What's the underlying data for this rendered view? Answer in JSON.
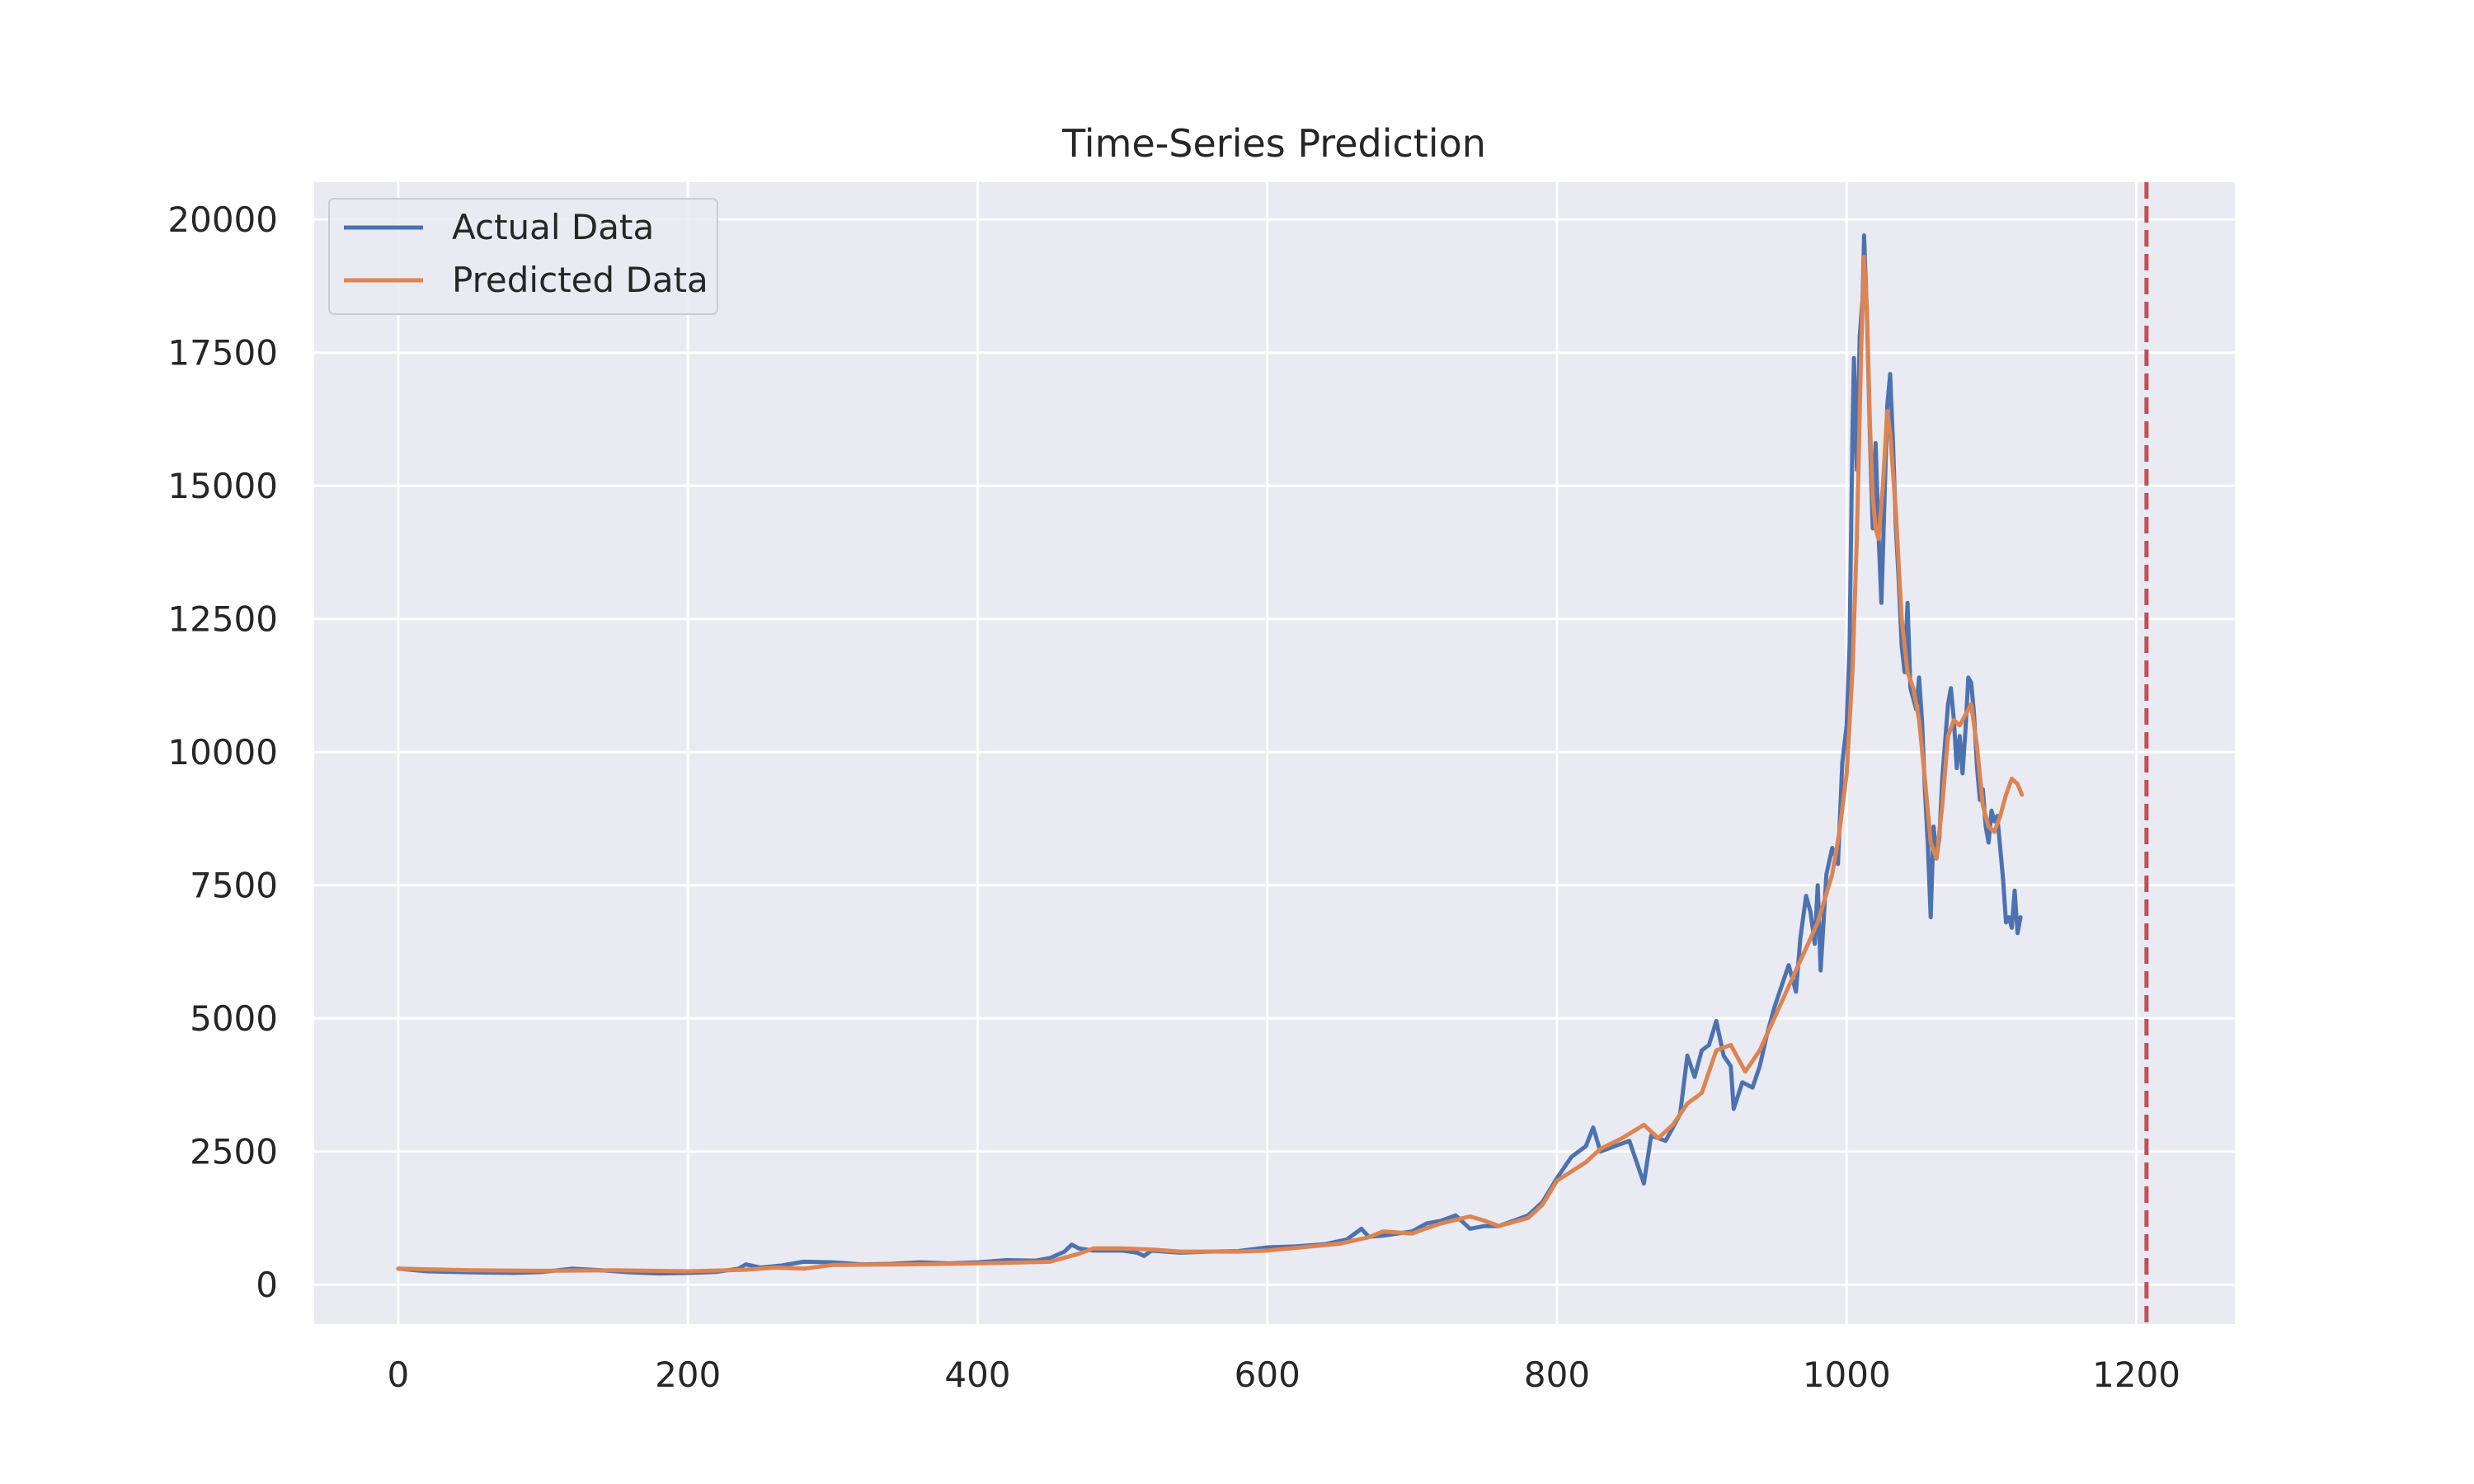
{
  "chart_data": {
    "type": "line",
    "title": "Time-Series Prediction",
    "xlabel": "",
    "ylabel": "",
    "xlim": [
      -58,
      1268
    ],
    "ylim": [
      -740,
      20700
    ],
    "xticks": [
      0,
      200,
      400,
      600,
      800,
      1000,
      1200
    ],
    "xtick_labels": [
      "0",
      "200",
      "400",
      "600",
      "800",
      "1000",
      "1200"
    ],
    "yticks": [
      0,
      2500,
      5000,
      7500,
      10000,
      12500,
      15000,
      17500,
      20000
    ],
    "ytick_labels": [
      "0",
      "2500",
      "5000",
      "7500",
      "10000",
      "12500",
      "15000",
      "17500",
      "20000"
    ],
    "grid": true,
    "legend_position": "top-left",
    "vline": {
      "x": 1207,
      "color": "#c44e52",
      "style": "dashed"
    },
    "colors": {
      "background": "#eaeaf2",
      "grid": "#ffffff",
      "actual": "#4c72b0",
      "predicted": "#dd8452",
      "vline": "#c44e52"
    },
    "series": [
      {
        "name": "Actual Data",
        "color": "#4c72b0",
        "points": [
          [
            0,
            300
          ],
          [
            20,
            250
          ],
          [
            50,
            230
          ],
          [
            80,
            220
          ],
          [
            100,
            240
          ],
          [
            120,
            300
          ],
          [
            140,
            270
          ],
          [
            160,
            230
          ],
          [
            180,
            210
          ],
          [
            200,
            220
          ],
          [
            220,
            240
          ],
          [
            235,
            300
          ],
          [
            240,
            380
          ],
          [
            250,
            320
          ],
          [
            265,
            360
          ],
          [
            280,
            430
          ],
          [
            300,
            420
          ],
          [
            320,
            380
          ],
          [
            340,
            390
          ],
          [
            360,
            420
          ],
          [
            380,
            400
          ],
          [
            400,
            420
          ],
          [
            420,
            460
          ],
          [
            440,
            450
          ],
          [
            450,
            500
          ],
          [
            460,
            620
          ],
          [
            465,
            750
          ],
          [
            470,
            680
          ],
          [
            480,
            640
          ],
          [
            500,
            640
          ],
          [
            510,
            600
          ],
          [
            515,
            540
          ],
          [
            520,
            640
          ],
          [
            540,
            600
          ],
          [
            560,
            620
          ],
          [
            580,
            630
          ],
          [
            600,
            700
          ],
          [
            620,
            720
          ],
          [
            640,
            760
          ],
          [
            655,
            850
          ],
          [
            665,
            1050
          ],
          [
            670,
            900
          ],
          [
            680,
            920
          ],
          [
            700,
            1000
          ],
          [
            710,
            1150
          ],
          [
            720,
            1200
          ],
          [
            730,
            1300
          ],
          [
            740,
            1050
          ],
          [
            750,
            1100
          ],
          [
            760,
            1100
          ],
          [
            770,
            1200
          ],
          [
            780,
            1300
          ],
          [
            790,
            1550
          ],
          [
            800,
            2000
          ],
          [
            810,
            2400
          ],
          [
            820,
            2600
          ],
          [
            825,
            2950
          ],
          [
            830,
            2500
          ],
          [
            840,
            2600
          ],
          [
            850,
            2700
          ],
          [
            855,
            2300
          ],
          [
            860,
            1900
          ],
          [
            865,
            2800
          ],
          [
            875,
            2700
          ],
          [
            885,
            3200
          ],
          [
            890,
            4300
          ],
          [
            895,
            3900
          ],
          [
            900,
            4400
          ],
          [
            905,
            4500
          ],
          [
            910,
            4950
          ],
          [
            915,
            4300
          ],
          [
            920,
            4100
          ],
          [
            922,
            3300
          ],
          [
            928,
            3800
          ],
          [
            935,
            3700
          ],
          [
            940,
            4100
          ],
          [
            945,
            4700
          ],
          [
            950,
            5200
          ],
          [
            955,
            5600
          ],
          [
            960,
            6000
          ],
          [
            965,
            5500
          ],
          [
            968,
            6500
          ],
          [
            972,
            7300
          ],
          [
            975,
            7000
          ],
          [
            978,
            6400
          ],
          [
            980,
            7500
          ],
          [
            982,
            5900
          ],
          [
            986,
            7700
          ],
          [
            990,
            8200
          ],
          [
            994,
            7900
          ],
          [
            997,
            9800
          ],
          [
            1000,
            10500
          ],
          [
            1002,
            12000
          ],
          [
            1004,
            16000
          ],
          [
            1005,
            17400
          ],
          [
            1007,
            15300
          ],
          [
            1009,
            17800
          ],
          [
            1011,
            18500
          ],
          [
            1012,
            19700
          ],
          [
            1014,
            18200
          ],
          [
            1016,
            16000
          ],
          [
            1018,
            14200
          ],
          [
            1020,
            15800
          ],
          [
            1022,
            14100
          ],
          [
            1024,
            12800
          ],
          [
            1026,
            14600
          ],
          [
            1028,
            16500
          ],
          [
            1030,
            17100
          ],
          [
            1032,
            15800
          ],
          [
            1034,
            14200
          ],
          [
            1036,
            13200
          ],
          [
            1038,
            12000
          ],
          [
            1040,
            11500
          ],
          [
            1042,
            12800
          ],
          [
            1044,
            11200
          ],
          [
            1046,
            11000
          ],
          [
            1048,
            10800
          ],
          [
            1050,
            11400
          ],
          [
            1052,
            10600
          ],
          [
            1054,
            9300
          ],
          [
            1056,
            8300
          ],
          [
            1058,
            6900
          ],
          [
            1060,
            8600
          ],
          [
            1062,
            8000
          ],
          [
            1064,
            8400
          ],
          [
            1066,
            9500
          ],
          [
            1068,
            10200
          ],
          [
            1070,
            10900
          ],
          [
            1072,
            11200
          ],
          [
            1074,
            10600
          ],
          [
            1076,
            9700
          ],
          [
            1078,
            10300
          ],
          [
            1080,
            9600
          ],
          [
            1082,
            10400
          ],
          [
            1084,
            11400
          ],
          [
            1086,
            11300
          ],
          [
            1088,
            10700
          ],
          [
            1090,
            9700
          ],
          [
            1092,
            9100
          ],
          [
            1094,
            9300
          ],
          [
            1096,
            8600
          ],
          [
            1098,
            8300
          ],
          [
            1100,
            8900
          ],
          [
            1102,
            8700
          ],
          [
            1104,
            8800
          ],
          [
            1106,
            8200
          ],
          [
            1108,
            7600
          ],
          [
            1110,
            6800
          ],
          [
            1112,
            6900
          ],
          [
            1114,
            6700
          ],
          [
            1116,
            7400
          ],
          [
            1118,
            6600
          ],
          [
            1120,
            6900
          ]
        ]
      },
      {
        "name": "Predicted Data",
        "color": "#dd8452",
        "points": [
          [
            0,
            300
          ],
          [
            50,
            270
          ],
          [
            100,
            260
          ],
          [
            150,
            270
          ],
          [
            200,
            250
          ],
          [
            240,
            280
          ],
          [
            260,
            320
          ],
          [
            280,
            300
          ],
          [
            300,
            370
          ],
          [
            350,
            380
          ],
          [
            400,
            400
          ],
          [
            450,
            430
          ],
          [
            470,
            580
          ],
          [
            480,
            680
          ],
          [
            500,
            680
          ],
          [
            520,
            660
          ],
          [
            540,
            620
          ],
          [
            580,
            620
          ],
          [
            600,
            640
          ],
          [
            650,
            770
          ],
          [
            670,
            890
          ],
          [
            680,
            1000
          ],
          [
            700,
            960
          ],
          [
            710,
            1060
          ],
          [
            720,
            1150
          ],
          [
            740,
            1280
          ],
          [
            750,
            1200
          ],
          [
            760,
            1100
          ],
          [
            780,
            1250
          ],
          [
            790,
            1500
          ],
          [
            800,
            1950
          ],
          [
            820,
            2300
          ],
          [
            830,
            2550
          ],
          [
            845,
            2750
          ],
          [
            860,
            3000
          ],
          [
            870,
            2750
          ],
          [
            880,
            3000
          ],
          [
            890,
            3400
          ],
          [
            900,
            3600
          ],
          [
            910,
            4400
          ],
          [
            920,
            4500
          ],
          [
            930,
            4000
          ],
          [
            940,
            4400
          ],
          [
            950,
            5000
          ],
          [
            960,
            5600
          ],
          [
            970,
            6200
          ],
          [
            980,
            6800
          ],
          [
            990,
            7700
          ],
          [
            995,
            8500
          ],
          [
            1000,
            9600
          ],
          [
            1004,
            11500
          ],
          [
            1007,
            14000
          ],
          [
            1010,
            17500
          ],
          [
            1012,
            19300
          ],
          [
            1014,
            18300
          ],
          [
            1016,
            16200
          ],
          [
            1018,
            14800
          ],
          [
            1020,
            14200
          ],
          [
            1022,
            14000
          ],
          [
            1025,
            15000
          ],
          [
            1028,
            16400
          ],
          [
            1030,
            16000
          ],
          [
            1034,
            14500
          ],
          [
            1038,
            12500
          ],
          [
            1042,
            11500
          ],
          [
            1046,
            11200
          ],
          [
            1050,
            10600
          ],
          [
            1054,
            9500
          ],
          [
            1058,
            8300
          ],
          [
            1062,
            8000
          ],
          [
            1066,
            9000
          ],
          [
            1070,
            10300
          ],
          [
            1074,
            10600
          ],
          [
            1078,
            10500
          ],
          [
            1082,
            10700
          ],
          [
            1086,
            10900
          ],
          [
            1090,
            10100
          ],
          [
            1094,
            9000
          ],
          [
            1098,
            8600
          ],
          [
            1102,
            8500
          ],
          [
            1106,
            8800
          ],
          [
            1110,
            9200
          ],
          [
            1114,
            9500
          ],
          [
            1118,
            9400
          ],
          [
            1121,
            9200
          ]
        ]
      }
    ]
  }
}
